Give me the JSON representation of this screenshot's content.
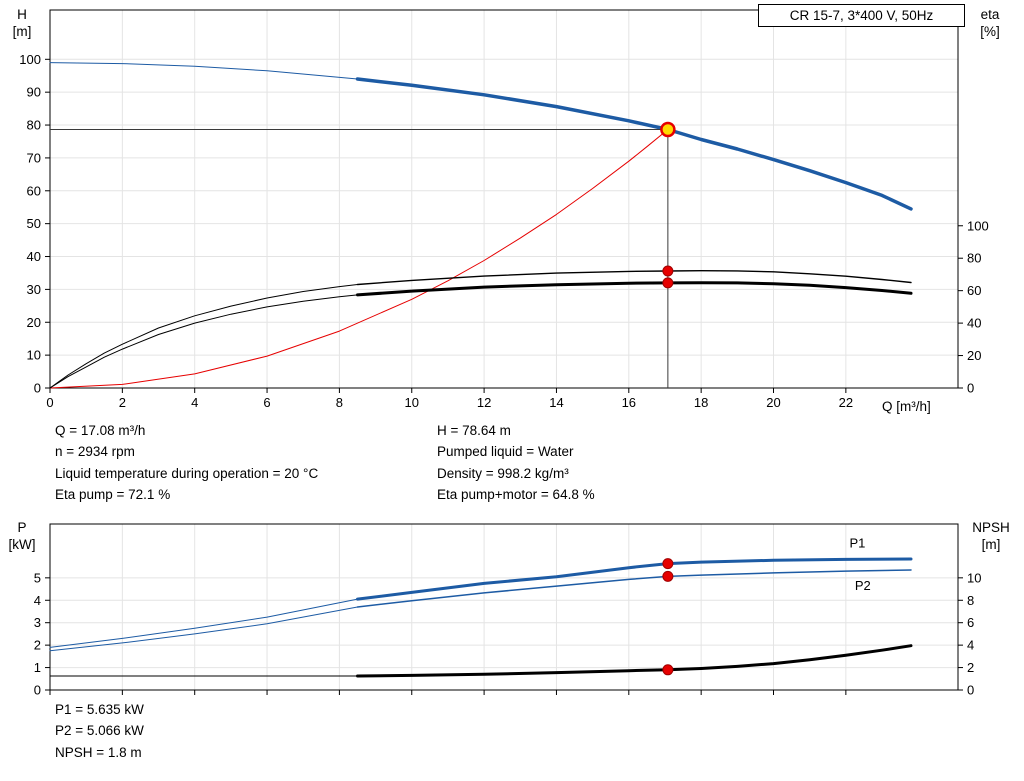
{
  "title_box": "CR 15-7, 3*400 V, 50Hz",
  "colors": {
    "blue": "#1d5ba4",
    "red": "#e60000",
    "black": "#000000",
    "yellow": "#ffd900",
    "grid": "#e4e4e4",
    "duty_line": "#3a3a3a"
  },
  "info_top": {
    "left": [
      "Q = 17.08 m³/h",
      "n = 2934 rpm",
      "Liquid temperature during operation = 20 °C",
      "Eta pump = 72.1 %"
    ],
    "right": [
      "H = 78.64 m",
      "Pumped liquid = Water",
      "Density = 998.2 kg/m³",
      "Eta pump+motor = 64.8 %"
    ]
  },
  "info_bottom": [
    "P1 = 5.635 kW",
    "P2 = 5.066 kW",
    "NPSH = 1.8 m"
  ],
  "chart_data": [
    {
      "type": "line",
      "title": "CR 15-7, 3*400 V, 50Hz",
      "axes": {
        "x": {
          "label": "Q [m³/h]",
          "range": [
            0,
            25.1
          ],
          "ticks": [
            0,
            2,
            4,
            6,
            8,
            10,
            12,
            14,
            16,
            18,
            20,
            22
          ],
          "show_tick_labels": true
        },
        "y_left": {
          "label": [
            "H",
            "[m]"
          ],
          "range": [
            0,
            115
          ],
          "ticks": [
            0,
            10,
            20,
            30,
            40,
            50,
            60,
            70,
            80,
            90,
            100
          ]
        },
        "y_right": {
          "label": [
            "eta",
            "[%]"
          ],
          "range": [
            0,
            233
          ],
          "ticks": [
            0,
            20,
            40,
            60,
            80,
            100
          ]
        }
      },
      "series": [
        {
          "name": "head-curve-extrapolated",
          "axis": "left",
          "color": "blue",
          "width": 1,
          "points": [
            [
              0,
              99
            ],
            [
              2,
              98.7
            ],
            [
              4,
              97.9
            ],
            [
              6,
              96.5
            ],
            [
              8.5,
              94
            ]
          ]
        },
        {
          "name": "head-curve",
          "axis": "left",
          "color": "blue",
          "width": 3.5,
          "points": [
            [
              8.5,
              94
            ],
            [
              10,
              92.1
            ],
            [
              12,
              89.2
            ],
            [
              14,
              85.6
            ],
            [
              16,
              81.3
            ],
            [
              17.08,
              78.64
            ],
            [
              18,
              75.6
            ],
            [
              19,
              72.7
            ],
            [
              20,
              69.5
            ],
            [
              21,
              66.1
            ],
            [
              22,
              62.5
            ],
            [
              23,
              58.6
            ],
            [
              23.8,
              54.5
            ]
          ]
        },
        {
          "name": "system-curve",
          "axis": "left",
          "color": "red",
          "width": 1,
          "points": [
            [
              0,
              0
            ],
            [
              2,
              1.1
            ],
            [
              4,
              4.3
            ],
            [
              6,
              9.7
            ],
            [
              8,
              17.3
            ],
            [
              10,
              27
            ],
            [
              11,
              32.6
            ],
            [
              12,
              38.8
            ],
            [
              13,
              45.6
            ],
            [
              14,
              52.8
            ],
            [
              15,
              60.7
            ],
            [
              16,
              69
            ],
            [
              16.5,
              73.4
            ],
            [
              17.08,
              78.64
            ]
          ]
        },
        {
          "name": "eta-pump-extrapolated",
          "axis": "right",
          "color": "black",
          "width": 1,
          "points": [
            [
              0,
              0
            ],
            [
              0.5,
              8
            ],
            [
              1,
              15
            ],
            [
              1.5,
              21.5
            ],
            [
              2,
              27
            ],
            [
              3,
              37
            ],
            [
              4,
              44.5
            ],
            [
              5,
              50.5
            ],
            [
              6,
              55.5
            ],
            [
              7,
              59.5
            ],
            [
              8,
              62.5
            ],
            [
              8.5,
              63.8
            ]
          ]
        },
        {
          "name": "eta-pump-curve",
          "axis": "right",
          "color": "black",
          "width": 1.4,
          "points": [
            [
              8.5,
              63.8
            ],
            [
              10,
              66.3
            ],
            [
              12,
              69
            ],
            [
              14,
              70.8
            ],
            [
              16,
              71.9
            ],
            [
              17.08,
              72.1
            ],
            [
              18,
              72.3
            ],
            [
              19,
              72.2
            ],
            [
              20,
              71.6
            ],
            [
              21,
              70.4
            ],
            [
              22,
              68.9
            ],
            [
              23,
              66.9
            ],
            [
              23.8,
              65
            ]
          ]
        },
        {
          "name": "eta-pump-motor-extrapolated",
          "axis": "right",
          "color": "black",
          "width": 1,
          "points": [
            [
              0,
              0
            ],
            [
              0.5,
              7
            ],
            [
              1,
              13
            ],
            [
              1.5,
              19
            ],
            [
              2,
              24
            ],
            [
              3,
              33
            ],
            [
              4,
              40
            ],
            [
              5,
              45.5
            ],
            [
              6,
              50
            ],
            [
              7,
              53.5
            ],
            [
              8,
              56.3
            ],
            [
              8.5,
              57.4
            ]
          ]
        },
        {
          "name": "eta-pump-motor-curve",
          "axis": "right",
          "color": "black",
          "width": 3,
          "points": [
            [
              8.5,
              57.4
            ],
            [
              10,
              59.7
            ],
            [
              12,
              62.2
            ],
            [
              14,
              63.7
            ],
            [
              16,
              64.6
            ],
            [
              17.08,
              64.8
            ],
            [
              18,
              64.9
            ],
            [
              19,
              64.8
            ],
            [
              20,
              64.3
            ],
            [
              21,
              63.3
            ],
            [
              22,
              61.9
            ],
            [
              23,
              60.1
            ],
            [
              23.8,
              58.4
            ]
          ]
        }
      ],
      "duty_lines": {
        "q": 17.08,
        "value": 78.64
      },
      "markers": [
        {
          "name": "duty-point-marker",
          "q": 17.08,
          "value": 78.64,
          "axis": "left",
          "style": "duty"
        },
        {
          "name": "eta-pump-duty-dot",
          "q": 17.08,
          "value": 72.1,
          "axis": "right",
          "style": "dot"
        },
        {
          "name": "eta-pump-motor-duty-dot",
          "q": 17.08,
          "value": 64.8,
          "axis": "right",
          "style": "dot"
        }
      ],
      "annotations": []
    },
    {
      "type": "line",
      "axes": {
        "x": {
          "label": "",
          "range": [
            0,
            25.1
          ],
          "ticks": [
            0,
            2,
            4,
            6,
            8,
            10,
            12,
            14,
            16,
            18,
            20,
            22
          ],
          "show_tick_labels": false
        },
        "y_left": {
          "label": [
            "P",
            "[kW]"
          ],
          "range": [
            0,
            7.4
          ],
          "ticks": [
            0,
            1,
            2,
            3,
            4,
            5
          ]
        },
        "y_right": {
          "label": [
            "NPSH",
            "[m]"
          ],
          "range": [
            0,
            14.8
          ],
          "ticks": [
            0,
            2,
            4,
            6,
            8,
            10
          ]
        }
      },
      "series": [
        {
          "name": "p1-curve-extrapolated",
          "axis": "left",
          "color": "blue",
          "width": 1,
          "points": [
            [
              0,
              1.9
            ],
            [
              2,
              2.3
            ],
            [
              4,
              2.75
            ],
            [
              6,
              3.25
            ],
            [
              8.5,
              4.05
            ]
          ]
        },
        {
          "name": "p1-curve",
          "axis": "left",
          "color": "blue",
          "width": 3,
          "points": [
            [
              8.5,
              4.05
            ],
            [
              10,
              4.35
            ],
            [
              12,
              4.75
            ],
            [
              14,
              5.05
            ],
            [
              16,
              5.45
            ],
            [
              17.08,
              5.635
            ],
            [
              18,
              5.7
            ],
            [
              20,
              5.78
            ],
            [
              22,
              5.82
            ],
            [
              23.8,
              5.84
            ]
          ]
        },
        {
          "name": "p2-curve-extrapolated",
          "axis": "left",
          "color": "blue",
          "width": 1,
          "points": [
            [
              0,
              1.75
            ],
            [
              2,
              2.1
            ],
            [
              4,
              2.5
            ],
            [
              6,
              2.95
            ],
            [
              8.5,
              3.7
            ]
          ]
        },
        {
          "name": "p2-curve",
          "axis": "left",
          "color": "blue",
          "width": 1.5,
          "points": [
            [
              8.5,
              3.7
            ],
            [
              10,
              3.98
            ],
            [
              12,
              4.33
            ],
            [
              14,
              4.63
            ],
            [
              16,
              4.93
            ],
            [
              17.08,
              5.066
            ],
            [
              18,
              5.12
            ],
            [
              20,
              5.22
            ],
            [
              22,
              5.3
            ],
            [
              23.8,
              5.35
            ]
          ]
        },
        {
          "name": "npsh-curve-extrapolated",
          "axis": "right",
          "color": "black",
          "width": 1,
          "points": [
            [
              0,
              1.25
            ],
            [
              8.5,
              1.25
            ]
          ]
        },
        {
          "name": "npsh-curve",
          "axis": "right",
          "color": "black",
          "width": 3,
          "points": [
            [
              8.5,
              1.25
            ],
            [
              10,
              1.3
            ],
            [
              12,
              1.4
            ],
            [
              14,
              1.55
            ],
            [
              16,
              1.72
            ],
            [
              17.08,
              1.8
            ],
            [
              18,
              1.92
            ],
            [
              19,
              2.1
            ],
            [
              20,
              2.35
            ],
            [
              21,
              2.7
            ],
            [
              22,
              3.1
            ],
            [
              23,
              3.55
            ],
            [
              23.8,
              3.95
            ]
          ]
        }
      ],
      "markers": [
        {
          "name": "p1-duty-dot",
          "q": 17.08,
          "value": 5.635,
          "axis": "left",
          "style": "dot"
        },
        {
          "name": "p2-duty-dot",
          "q": 17.08,
          "value": 5.066,
          "axis": "left",
          "style": "dot"
        },
        {
          "name": "npsh-duty-dot",
          "q": 17.08,
          "value": 1.8,
          "axis": "right",
          "style": "dot"
        }
      ],
      "annotations": [
        {
          "text": "P1",
          "q": 22.1,
          "value": 6.35,
          "axis": "left",
          "color": "blue"
        },
        {
          "text": "P2",
          "q": 22.25,
          "value": 4.45,
          "axis": "left",
          "color": "blue"
        }
      ]
    }
  ]
}
